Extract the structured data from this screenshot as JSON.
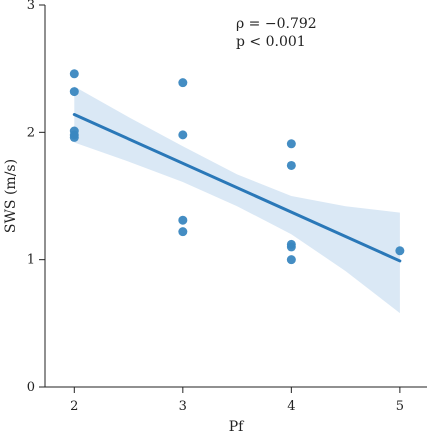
{
  "chart_data": {
    "type": "scatter",
    "title": "",
    "xlabel": "Pf",
    "ylabel": "SWS (m/s)",
    "xlim": [
      1.73,
      5.25
    ],
    "ylim": [
      0,
      3
    ],
    "x_ticks": [
      2,
      3,
      4,
      5
    ],
    "y_ticks": [
      0,
      1,
      2,
      3
    ],
    "x_tick_labels": [
      "2",
      "3",
      "4",
      "5"
    ],
    "y_tick_labels": [
      "0",
      "1",
      "2",
      "3"
    ],
    "grid": false,
    "legend": "none",
    "points": [
      {
        "x": 2,
        "y": 2.46
      },
      {
        "x": 2,
        "y": 2.32
      },
      {
        "x": 2,
        "y": 2.01
      },
      {
        "x": 2,
        "y": 1.98
      },
      {
        "x": 2,
        "y": 1.96
      },
      {
        "x": 3,
        "y": 2.39
      },
      {
        "x": 3,
        "y": 1.98
      },
      {
        "x": 3,
        "y": 1.31
      },
      {
        "x": 3,
        "y": 1.22
      },
      {
        "x": 4,
        "y": 1.91
      },
      {
        "x": 4,
        "y": 1.74
      },
      {
        "x": 4,
        "y": 1.12
      },
      {
        "x": 4,
        "y": 1.1
      },
      {
        "x": 4,
        "y": 1.0
      },
      {
        "x": 5,
        "y": 1.07
      }
    ],
    "regression": {
      "x": [
        2,
        5
      ],
      "y": [
        2.14,
        0.99
      ]
    },
    "confidence_band": {
      "x": [
        2,
        2.5,
        3,
        3.5,
        4,
        4.5,
        5
      ],
      "upper": [
        2.36,
        2.12,
        1.89,
        1.67,
        1.5,
        1.42,
        1.37
      ],
      "lower": [
        1.92,
        1.77,
        1.61,
        1.42,
        1.2,
        0.91,
        0.58
      ]
    },
    "annotations": [
      "ρ = −0.792",
      "p < 0.001"
    ],
    "colors": {
      "point": "#3a87c0",
      "line": "#2a78b8",
      "band": "#d6e6f4",
      "axis": "#222222"
    }
  }
}
